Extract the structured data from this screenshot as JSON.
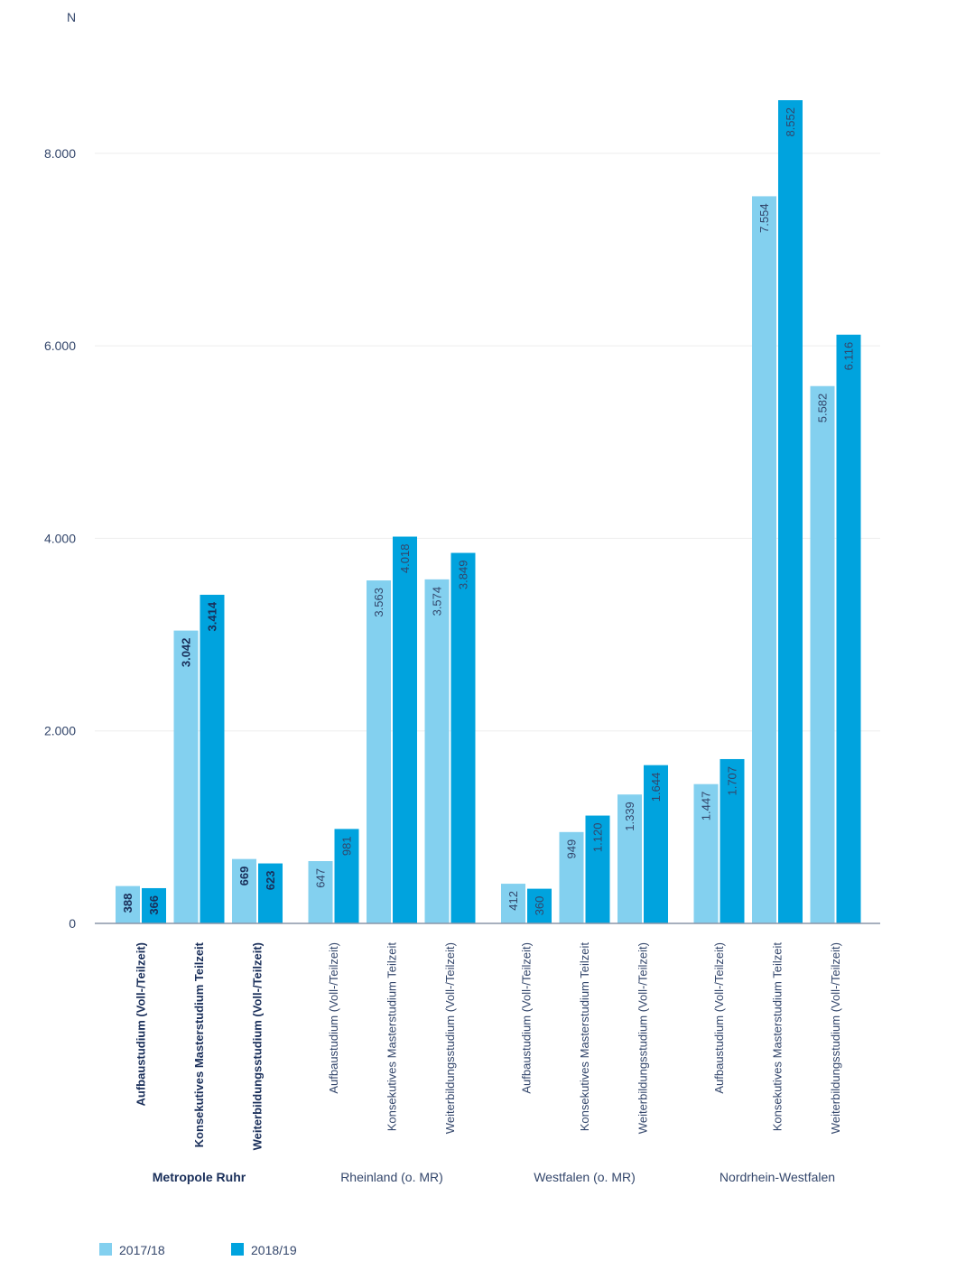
{
  "chart_data": {
    "type": "bar",
    "ylabel": "N",
    "ylim": [
      0,
      8800
    ],
    "yticks": [
      0,
      2000,
      4000,
      6000,
      8000
    ],
    "ytick_labels": [
      "0",
      "2.000",
      "4.000",
      "6.000",
      "8.000"
    ],
    "grid": true,
    "legend_position": "bottom-left",
    "groups": [
      {
        "name": "Metropole Ruhr",
        "highlight": true
      },
      {
        "name": "Rheinland (o. MR)",
        "highlight": false
      },
      {
        "name": "Westfalen (o. MR)",
        "highlight": false
      },
      {
        "name": "Nordrhein-Westfalen",
        "highlight": false
      }
    ],
    "categories": [
      "Aufbaustudium (Voll-/Teilzeit)",
      "Konsekutives Masterstudium Teilzeit",
      "Weiterbildungsstudium (Voll-/Teilzeit)"
    ],
    "series": [
      {
        "name": "2017/18",
        "color": "#83d0ef",
        "values": [
          [
            388,
            3042,
            669
          ],
          [
            647,
            3563,
            3574
          ],
          [
            412,
            949,
            1339
          ],
          [
            1447,
            7554,
            5582
          ]
        ],
        "labels": [
          [
            "388",
            "3.042",
            "669"
          ],
          [
            "647",
            "3.563",
            "3.574"
          ],
          [
            "412",
            "949",
            "1.339"
          ],
          [
            "1.447",
            "7.554",
            "5.582"
          ]
        ]
      },
      {
        "name": "2018/19",
        "color": "#00a3de",
        "values": [
          [
            366,
            3414,
            623
          ],
          [
            981,
            4018,
            3849
          ],
          [
            360,
            1120,
            1644
          ],
          [
            1707,
            8552,
            6116
          ]
        ],
        "labels": [
          [
            "366",
            "3.414",
            "623"
          ],
          [
            "981",
            "4.018",
            "3.849"
          ],
          [
            "360",
            "1.120",
            "1.644"
          ],
          [
            "1.707",
            "8.552",
            "6.116"
          ]
        ]
      }
    ]
  },
  "colors": {
    "axis_text": "#33466b",
    "highlight_text": "#1a2f5a",
    "grid": "#eeeeee",
    "axis_line": "#8a95a8"
  }
}
